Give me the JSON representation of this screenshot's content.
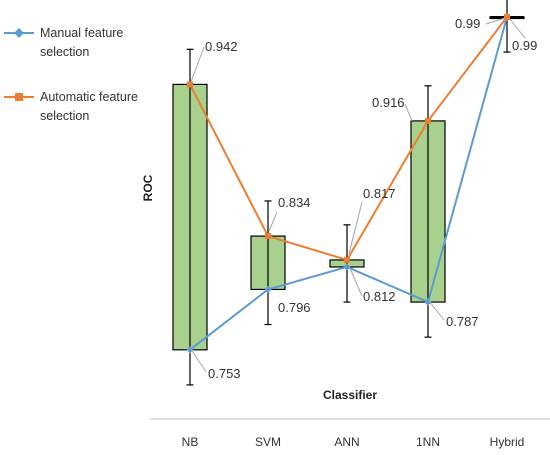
{
  "chart_data": {
    "type": "line",
    "categories": [
      "NB",
      "SVM",
      "ANN",
      "1NN",
      "Hybrid"
    ],
    "xlabel": "Classifier",
    "ylabel": "ROC",
    "series": [
      {
        "name": "Manual feature selection",
        "color": "#5B9BD5",
        "marker": "diamond",
        "values": [
          0.753,
          0.796,
          0.812,
          0.787,
          0.99
        ]
      },
      {
        "name": "Automatic feature selection",
        "color": "#ED7D31",
        "marker": "square",
        "values": [
          0.942,
          0.834,
          0.817,
          0.916,
          0.99
        ]
      }
    ],
    "error_bar_delta": 0.025,
    "box_color": "#A9D18E",
    "box_border": "#000000",
    "legend_position": "top-left",
    "grid": false,
    "ylim": [
      0.71,
      1.0
    ]
  },
  "labels": [
    {
      "text": "0.942"
    },
    {
      "text": "0.753"
    },
    {
      "text": "0.834"
    },
    {
      "text": "0.796"
    },
    {
      "text": "0.817"
    },
    {
      "text": "0.812"
    },
    {
      "text": "0.916"
    },
    {
      "text": "0.787"
    },
    {
      "text": "0.99"
    },
    {
      "text": "0.99"
    }
  ]
}
